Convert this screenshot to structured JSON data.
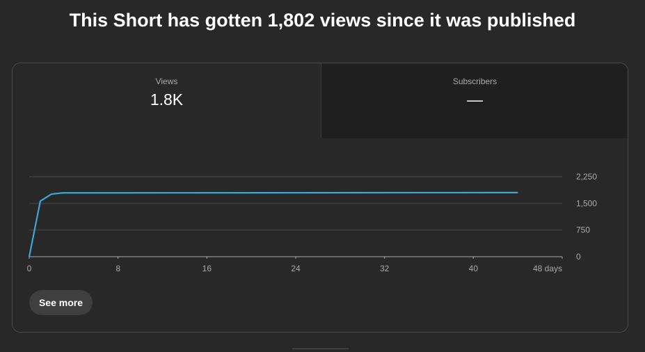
{
  "headline": "This Short has gotten 1,802 views since it was published",
  "tabs": [
    {
      "label": "Views",
      "value": "1.8K",
      "selected": true
    },
    {
      "label": "Subscribers",
      "value": "—",
      "selected": false
    }
  ],
  "see_more_label": "See more",
  "colors": {
    "line": "#3ea6d8",
    "grid": "#3a3a3a",
    "axis": "#aaaaaa"
  },
  "chart_data": {
    "type": "line",
    "x": [
      0,
      1,
      2,
      3,
      44
    ],
    "values": [
      0,
      1565,
      1760,
      1795,
      1802
    ],
    "xlim": [
      0,
      48
    ],
    "ylim": [
      0,
      2250
    ],
    "x_ticks": [
      "0",
      "8",
      "16",
      "24",
      "32",
      "40",
      "48 days"
    ],
    "x_tick_values": [
      0,
      8,
      16,
      24,
      32,
      40,
      48
    ],
    "y_ticks": [
      "0",
      "750",
      "1,500",
      "2,250"
    ],
    "y_tick_values": [
      0,
      750,
      1500,
      2250
    ],
    "grid": true,
    "ylabel": "",
    "xlabel": ""
  }
}
